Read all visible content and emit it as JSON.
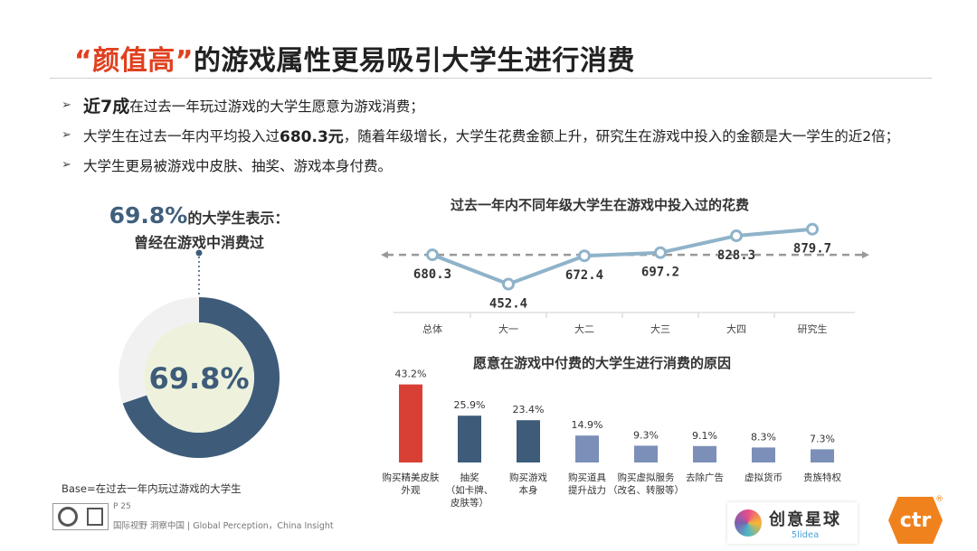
{
  "header": {
    "title_highlight": "“颜值高”",
    "title_rest": "的游戏属性更易吸引大学生进行消费"
  },
  "bullets": [
    {
      "bold": "近7成",
      "text": "在过去一年玩过游戏的大学生愿意为游戏消费；"
    },
    {
      "pre": "大学生在过去一年内平均投入过",
      "bold": "680.3元",
      "text": "，随着年级增长，大学生花费金额上升，研究生在游戏中投入的金额是大一学生的近2倍；"
    },
    {
      "text": "大学生更易被游戏中皮肤、抽奖、游戏本身付费。"
    }
  ],
  "donut": {
    "head_pct": "69.8%",
    "head_rest": "的大学生表示：",
    "head_line2": "曾经在游戏中消费过",
    "center_label": "69.8%",
    "value": 69.8
  },
  "base_note": "Base=在过去一年内玩过游戏的大学生",
  "footer": {
    "page": "P 25",
    "text": "国际视野  洞察中国 |  Global Perception，China Insight"
  },
  "brand": {
    "cn": "创意星球",
    "en": "5lidea",
    "ctr": "ctr",
    "reg": "®"
  },
  "chart_data": [
    {
      "type": "line",
      "title": "过去一年内不同年级大学生在游戏中投入过的花费",
      "categories": [
        "总体",
        "大一",
        "大二",
        "大三",
        "大四",
        "研究生"
      ],
      "values": [
        680.3,
        452.4,
        672.4,
        697.2,
        828.3,
        879.7
      ],
      "value_labels": [
        "680.3",
        "452.4",
        "672.4",
        "697.2",
        "828.3",
        "879.7"
      ],
      "reference_line": 680.3,
      "ylim": [
        400,
        920
      ],
      "color": "#8fb3c9"
    },
    {
      "type": "bar",
      "title": "愿意在游戏中付费的大学生进行消费的原因",
      "categories": [
        [
          "购买精美皮肤",
          "外观"
        ],
        [
          "抽奖",
          "（如卡牌、",
          "皮肤等）"
        ],
        [
          "购买游戏",
          "本身"
        ],
        [
          "购买道具",
          "提升战力"
        ],
        [
          "购买虚拟服务",
          "（改名、转服等）"
        ],
        [
          "去除广告"
        ],
        [
          "虚拟货币"
        ],
        [
          "贵族特权"
        ]
      ],
      "values": [
        43.2,
        25.9,
        23.4,
        14.9,
        9.3,
        9.1,
        8.3,
        7.3
      ],
      "value_labels": [
        "43.2%",
        "25.9%",
        "23.4%",
        "14.9%",
        "9.3%",
        "9.1%",
        "8.3%",
        "7.3%"
      ],
      "colors": [
        "#d94035",
        "#3e5c7a",
        "#3e5c7a",
        "#7b8fb8",
        "#7b8fb8",
        "#7b8fb8",
        "#7b8fb8",
        "#7b8fb8"
      ],
      "ylim": [
        0,
        45
      ]
    }
  ]
}
